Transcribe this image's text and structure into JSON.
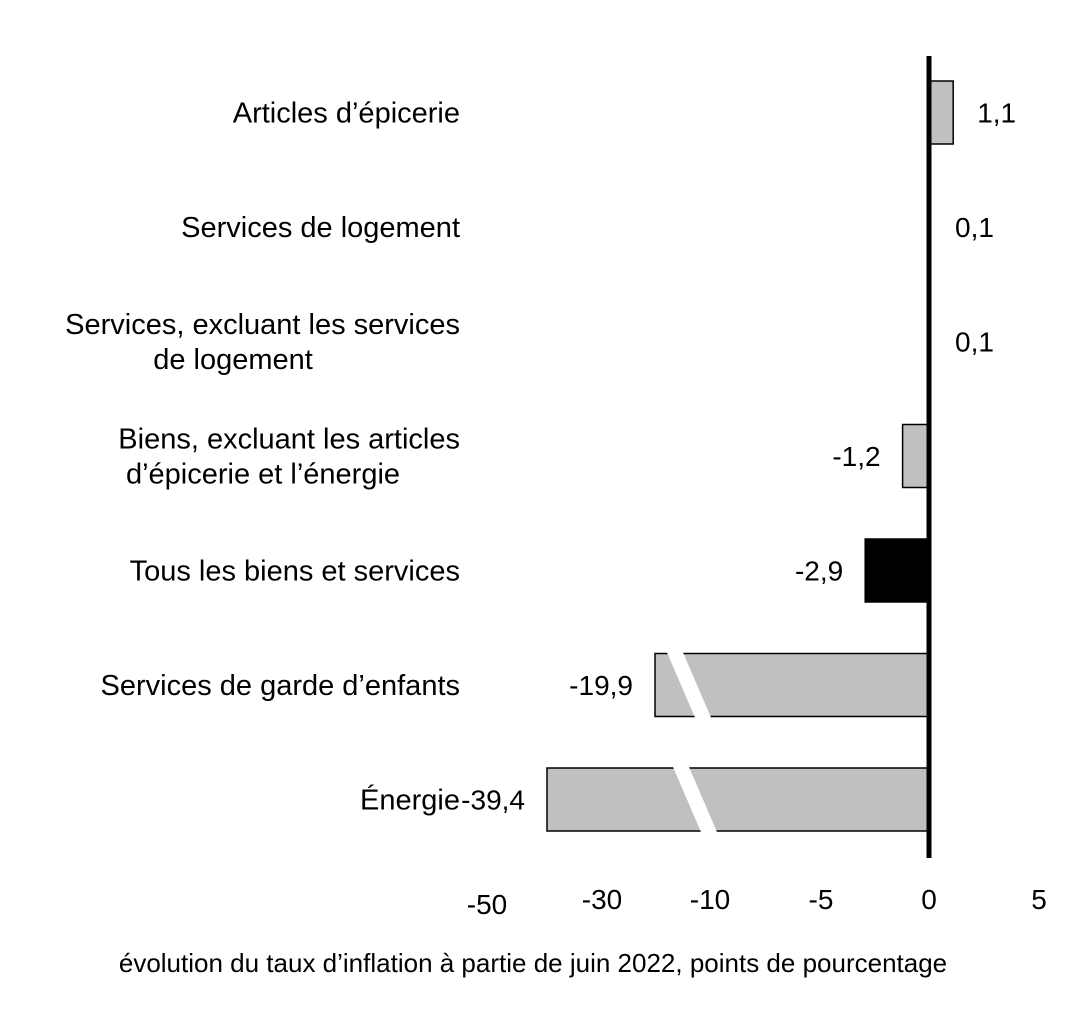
{
  "chart_data": {
    "type": "bar",
    "orientation": "horizontal",
    "categories": [
      [
        "Articles d’épicerie"
      ],
      [
        "Services de logement"
      ],
      [
        "Services, excluant les services",
        "de logement"
      ],
      [
        "Biens, excluant les articles",
        "d’épicerie et l’énergie"
      ],
      [
        "Tous les biens et services"
      ],
      [
        "Services de garde d’enfants"
      ],
      [
        "Énergie"
      ]
    ],
    "values": [
      1.1,
      0.1,
      0.1,
      -1.2,
      -2.9,
      -19.9,
      -39.4
    ],
    "value_labels": [
      "1,1",
      "0,1",
      "0,1",
      "-1,2",
      "-2,9",
      "-19,9",
      "-39,4"
    ],
    "highlight": [
      false,
      false,
      false,
      false,
      true,
      false,
      false
    ],
    "broken_axis": [
      false,
      false,
      false,
      false,
      false,
      true,
      true
    ],
    "x_tick_labels": [
      "-50",
      "-30",
      "-10",
      "-5",
      "0",
      "5"
    ],
    "xlabel": "évolution du taux d’inflation à partie de juin 2022, points de pourcentage",
    "colors": {
      "bar": "#c0c0c0",
      "highlight": "#000000",
      "outline": "#000000",
      "axis": "#000000",
      "break": "#ffffff"
    },
    "grid": false
  }
}
